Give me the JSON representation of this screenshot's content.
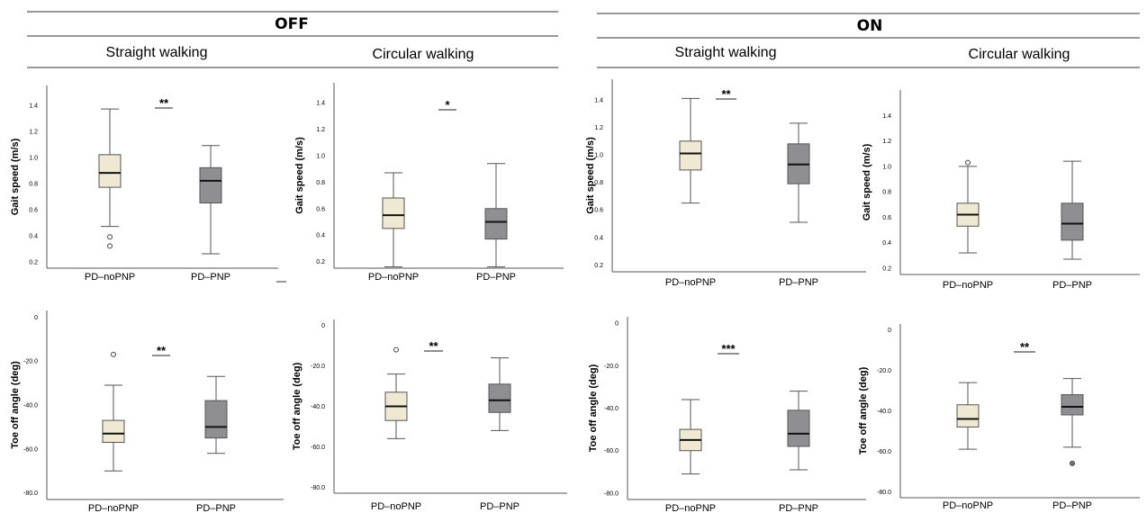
{
  "header": {
    "off_title": "OFF",
    "on_title": "ON",
    "off_col1": "Straight walking",
    "off_col2": "Circular walking",
    "on_col1": "Straight walking",
    "on_col2": "Circular walking"
  },
  "colors": {
    "no_pnp_fill": "#efe8d3",
    "pnp_fill": "#8f8f91",
    "stroke": "#333333"
  },
  "chart_data": [
    {
      "type": "box",
      "id": "off-straight-speed",
      "ylabel": "Gait speed (m/s)",
      "categories": [
        "PD–noPNP",
        "PD–PNP"
      ],
      "yticks": [
        "0.2",
        "0.4",
        "0.6",
        "0.8",
        "1.0",
        "1.2",
        "1.4"
      ],
      "ylim": [
        0.15,
        1.55
      ],
      "significance": "**",
      "boxes": [
        {
          "min": 0.47,
          "q1": 0.77,
          "median": 0.88,
          "q3": 1.02,
          "max": 1.37,
          "outliers": [
            0.39,
            0.32
          ]
        },
        {
          "min": 0.26,
          "q1": 0.65,
          "median": 0.82,
          "q3": 0.92,
          "max": 1.09,
          "outliers": []
        }
      ]
    },
    {
      "type": "box",
      "id": "off-circular-speed",
      "ylabel": "Gait speed (m/s)",
      "categories": [
        "PD–noPNP",
        "PD–PNP"
      ],
      "yticks": [
        "0.2",
        "0.4",
        "0.6",
        "0.8",
        "1.0",
        "1.2",
        "1.4"
      ],
      "ylim": [
        0.15,
        1.55
      ],
      "significance": "*",
      "boxes": [
        {
          "min": 0.16,
          "q1": 0.45,
          "median": 0.55,
          "q3": 0.68,
          "max": 0.87,
          "outliers": []
        },
        {
          "min": 0.16,
          "q1": 0.37,
          "median": 0.5,
          "q3": 0.6,
          "max": 0.94,
          "outliers": []
        }
      ]
    },
    {
      "type": "box",
      "id": "on-straight-speed",
      "ylabel": "Gait speed (m/s)",
      "categories": [
        "PD–noPNP",
        "PD–PNP"
      ],
      "yticks": [
        "0.2",
        "0.4",
        "0.6",
        "0.8",
        "1.0",
        "1.2",
        "1.4"
      ],
      "ylim": [
        0.15,
        1.55
      ],
      "significance": "**",
      "boxes": [
        {
          "min": 0.65,
          "q1": 0.89,
          "median": 1.01,
          "q3": 1.1,
          "max": 1.41,
          "outliers": []
        },
        {
          "min": 0.51,
          "q1": 0.79,
          "median": 0.93,
          "q3": 1.08,
          "max": 1.23,
          "outliers": []
        }
      ]
    },
    {
      "type": "box",
      "id": "on-circular-speed",
      "ylabel": "Gait speed (m/s)",
      "categories": [
        "PD–noPNP",
        "PD–PNP"
      ],
      "yticks": [
        "0.2",
        "0.4",
        "0.6",
        "0.8",
        "1.0",
        "1.2",
        "1.4"
      ],
      "ylim": [
        0.15,
        1.6
      ],
      "significance": "",
      "boxes": [
        {
          "min": 0.32,
          "q1": 0.53,
          "median": 0.62,
          "q3": 0.71,
          "max": 1.0,
          "outliers": [
            1.03
          ]
        },
        {
          "min": 0.27,
          "q1": 0.42,
          "median": 0.55,
          "q3": 0.71,
          "max": 1.04,
          "outliers": []
        }
      ]
    },
    {
      "type": "box",
      "id": "off-straight-toeoff",
      "ylabel": "Toe off angle (deg)",
      "categories": [
        "PD–noPNP",
        "PD–PNP"
      ],
      "yticks": [
        "0",
        "-20.0",
        "-40.0",
        "-60.0",
        "-80.0"
      ],
      "ylim": [
        -83,
        3
      ],
      "significance": "**",
      "boxes": [
        {
          "min": -70,
          "q1": -57,
          "median": -53,
          "q3": -47,
          "max": -31,
          "outliers": [
            -17
          ]
        },
        {
          "min": -62,
          "q1": -55,
          "median": -50,
          "q3": -38,
          "max": -27,
          "outliers": []
        }
      ]
    },
    {
      "type": "box",
      "id": "off-circular-toeoff",
      "ylabel": "Toe off angle (deg)",
      "categories": [
        "PD–noPNP",
        "PD–PNP"
      ],
      "yticks": [
        "0",
        "-20.0",
        "-40.0",
        "-60.0",
        "-80.0"
      ],
      "ylim": [
        -83,
        3
      ],
      "significance": "**",
      "boxes": [
        {
          "min": -56,
          "q1": -47,
          "median": -40,
          "q3": -33,
          "max": -24,
          "outliers": [
            -12
          ]
        },
        {
          "min": -52,
          "q1": -43,
          "median": -37,
          "q3": -29,
          "max": -16,
          "outliers": []
        }
      ]
    },
    {
      "type": "box",
      "id": "on-straight-toeoff",
      "ylabel": "Toe off angle (deg)",
      "categories": [
        "PD–noPNP",
        "PD–PNP"
      ],
      "yticks": [
        "0",
        "-20.0",
        "-40.0",
        "-60.0",
        "-80.0"
      ],
      "ylim": [
        -83,
        3
      ],
      "significance": "***",
      "boxes": [
        {
          "min": -71,
          "q1": -60,
          "median": -55,
          "q3": -50,
          "max": -36,
          "outliers": []
        },
        {
          "min": -69,
          "q1": -58,
          "median": -52,
          "q3": -41,
          "max": -32,
          "outliers": []
        }
      ]
    },
    {
      "type": "box",
      "id": "on-circular-toeoff",
      "ylabel": "Toe off angle (deg)",
      "categories": [
        "PD–noPNP",
        "PD–PNP"
      ],
      "yticks": [
        "0",
        "-20.0",
        "-40.0",
        "-60.0",
        "-80.0"
      ],
      "ylim": [
        -83,
        3
      ],
      "significance": "**",
      "boxes": [
        {
          "min": -59,
          "q1": -48,
          "median": -44,
          "q3": -37,
          "max": -26,
          "outliers": []
        },
        {
          "min": -58,
          "q1": -42,
          "median": -38,
          "q3": -32,
          "max": -24,
          "outliers": [
            -66
          ]
        }
      ]
    }
  ]
}
